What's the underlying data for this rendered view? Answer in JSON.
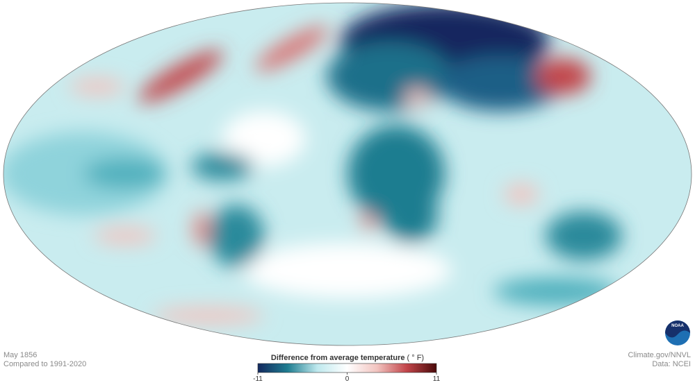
{
  "caption": {
    "date": "May 1856",
    "baseline": "Compared to 1991-2020"
  },
  "legend": {
    "title": "Difference from average temperature",
    "unit": "( ° F)",
    "min": -11,
    "max": 11,
    "ticks": [
      -11,
      0,
      11
    ],
    "colors": [
      "#13285e",
      "#1f7d90",
      "#bfe9ee",
      "#ffffff",
      "#f2c4c0",
      "#c2454a",
      "#4a0a0a"
    ]
  },
  "credits": {
    "source": "Climate.gov/NNVL",
    "data": "Data: NCEI"
  },
  "logo": "NOAA"
}
